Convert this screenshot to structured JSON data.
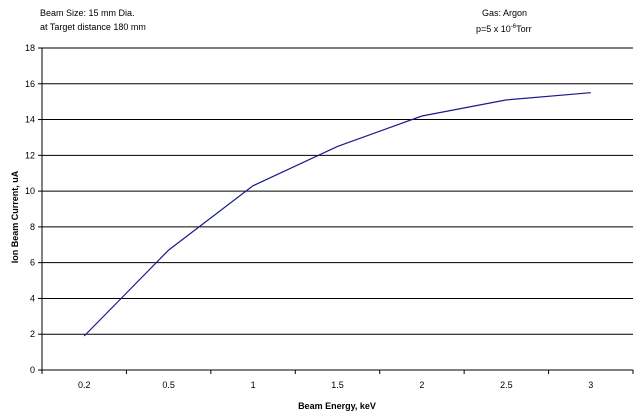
{
  "annotations": {
    "beam_size": "Beam Size: 15 mm Dia.",
    "target_distance": "at Target distance 180 mm",
    "gas": "Gas: Argon",
    "pressure_prefix": "p=5 x 10",
    "pressure_exponent": "-6",
    "pressure_unit": "Torr"
  },
  "chart_data": {
    "type": "line",
    "title": "",
    "xlabel": "Beam Energy, keV",
    "ylabel": "Ion Beam Current, uA",
    "categories": [
      "0.2",
      "0.5",
      "1",
      "1.5",
      "2",
      "2.5",
      "3"
    ],
    "series": [
      {
        "values": [
          1.9,
          6.7,
          10.3,
          12.5,
          14.2,
          15.1,
          15.5
        ]
      }
    ],
    "ylim": [
      0,
      18
    ],
    "yticks": [
      0,
      2,
      4,
      6,
      8,
      10,
      12,
      14,
      16,
      18
    ],
    "grid": true,
    "legend": "none",
    "line_color": "#1a1a8c"
  }
}
